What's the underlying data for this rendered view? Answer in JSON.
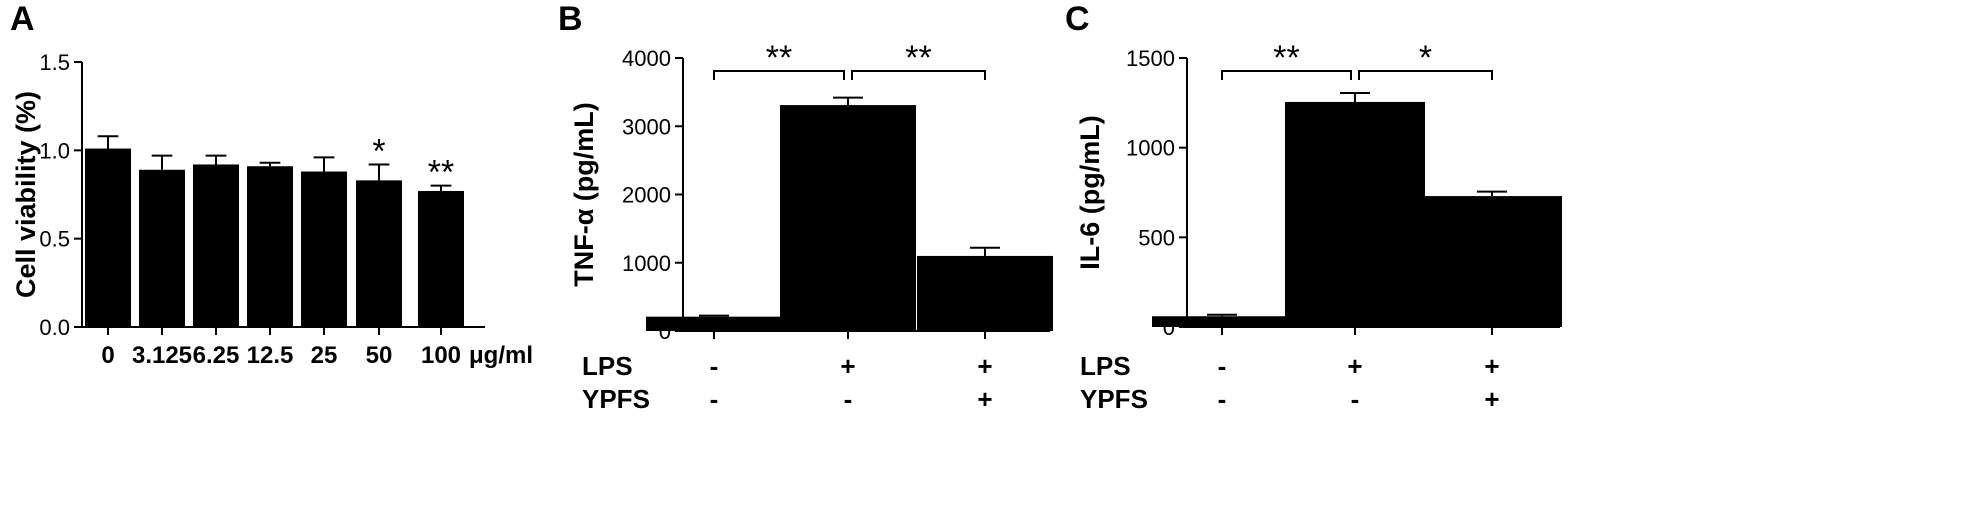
{
  "chart_data": [
    {
      "type": "bar",
      "panel": "A",
      "categories": [
        "0",
        "3.125",
        "6.25",
        "12.5",
        "25",
        "50",
        "100"
      ],
      "values": [
        1.01,
        0.89,
        0.92,
        0.91,
        0.88,
        0.83,
        0.77
      ],
      "errors": [
        0.07,
        0.08,
        0.05,
        0.02,
        0.08,
        0.09,
        0.03
      ],
      "significance": [
        "",
        "",
        "",
        "",
        "",
        "*",
        "**"
      ],
      "unit_label": "μg/ml",
      "xlabel": "",
      "ylabel": "Cell viability (%)",
      "ylim": [
        0,
        1.5
      ],
      "yticks": [
        "0.0",
        "0.5",
        "1.0",
        "1.5"
      ],
      "legend": "none",
      "grid": false
    },
    {
      "type": "bar",
      "panel": "B",
      "categories": [
        "",
        "",
        ""
      ],
      "values": [
        210,
        3310,
        1100
      ],
      "errors": [
        15,
        110,
        120
      ],
      "ylabel": "TNF-α (pg/mL)",
      "ylim": [
        0,
        4000
      ],
      "yticks": [
        "0",
        "1000",
        "2000",
        "3000",
        "4000"
      ],
      "brackets": [
        {
          "from": 0,
          "to": 1,
          "label": "**"
        },
        {
          "from": 1,
          "to": 2,
          "label": "**"
        }
      ],
      "treatment_rows": [
        {
          "name": "LPS",
          "signs": [
            "-",
            "+",
            "+"
          ]
        },
        {
          "name": "YPFS",
          "signs": [
            "-",
            "-",
            "+"
          ]
        }
      ],
      "legend": "none",
      "grid": false
    },
    {
      "type": "bar",
      "panel": "C",
      "categories": [
        "",
        "",
        ""
      ],
      "values": [
        60,
        1255,
        730
      ],
      "errors": [
        8,
        50,
        25
      ],
      "ylabel": "IL-6 (pg/mL)",
      "ylim": [
        0,
        1500
      ],
      "yticks": [
        "0",
        "500",
        "1000",
        "1500"
      ],
      "brackets": [
        {
          "from": 0,
          "to": 1,
          "label": "**"
        },
        {
          "from": 1,
          "to": 2,
          "label": "*"
        }
      ],
      "treatment_rows": [
        {
          "name": "LPS",
          "signs": [
            "-",
            "+",
            "+"
          ]
        },
        {
          "name": "YPFS",
          "signs": [
            "-",
            "-",
            "+"
          ]
        }
      ],
      "legend": "none",
      "grid": false
    }
  ],
  "colors": {
    "bar": "#000000",
    "axis": "#000000"
  }
}
